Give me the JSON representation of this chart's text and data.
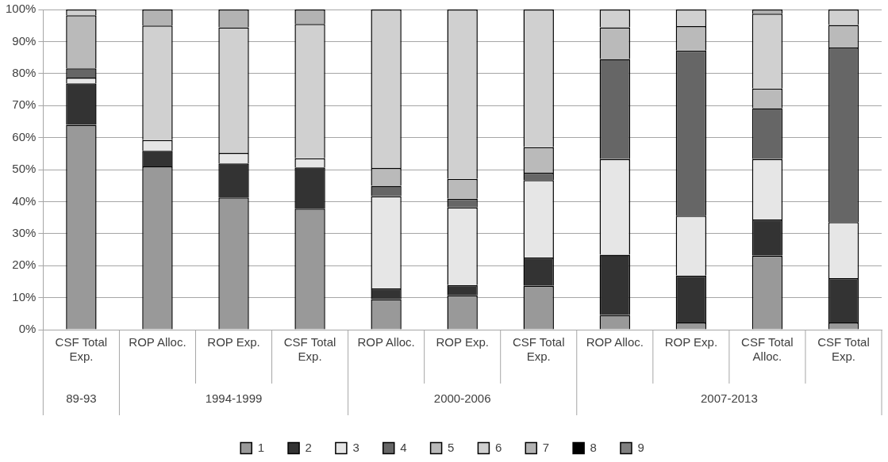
{
  "chart_data": {
    "type": "bar",
    "stacked": true,
    "categories": [
      "CSF Total Exp.",
      "ROP Alloc.",
      "ROP Exp.",
      "CSF Total Exp.",
      "ROP Alloc.",
      "ROP Exp.",
      "CSF Total Exp.",
      "ROP Alloc.",
      "ROP Exp.",
      "CSF Total Alloc.",
      "CSF Total Exp."
    ],
    "annotations": [
      "89-93",
      "1994-1999",
      "2000-2006",
      "2007-2013"
    ],
    "series": [
      {
        "name": "1",
        "color": "#999999",
        "values": [
          64.0,
          51.0,
          41.3,
          37.8,
          9.5,
          10.7,
          13.7,
          4.6,
          2.2,
          23.1,
          2.2
        ]
      },
      {
        "name": "2",
        "color": "#333333",
        "values": [
          12.9,
          4.9,
          10.6,
          12.9,
          3.4,
          3.2,
          8.8,
          18.8,
          14.7,
          11.3,
          13.9
        ]
      },
      {
        "name": "3",
        "color": "#e6e6e6",
        "values": [
          1.8,
          3.3,
          3.3,
          2.8,
          28.8,
          24.3,
          24.2,
          29.9,
          18.7,
          18.9,
          17.5
        ]
      },
      {
        "name": "4",
        "color": "#666666",
        "values": [
          2.9,
          null,
          null,
          null,
          3.2,
          2.7,
          2.3,
          31.2,
          51.6,
          15.9,
          54.5
        ]
      },
      {
        "name": "5",
        "color": "#bababa",
        "values": [
          16.6,
          null,
          null,
          null,
          5.6,
          6.2,
          8.0,
          9.9,
          7.6,
          6.1,
          7.1
        ]
      },
      {
        "name": "6",
        "color": "#d0d0d0",
        "values": [
          1.8,
          35.8,
          39.2,
          42.0,
          49.5,
          52.9,
          43.0,
          5.6,
          5.2,
          23.4,
          4.8
        ]
      },
      {
        "name": "7",
        "color": "#b3b3b3",
        "values": [
          null,
          5.0,
          5.6,
          4.5,
          null,
          null,
          null,
          null,
          null,
          1.3,
          null
        ]
      },
      {
        "name": "8",
        "color": "#000000",
        "values": [
          null,
          null,
          null,
          null,
          null,
          null,
          null,
          null,
          null,
          null,
          null
        ]
      },
      {
        "name": "9",
        "color": "#808080",
        "values": [
          null,
          null,
          null,
          null,
          null,
          null,
          null,
          null,
          null,
          null,
          null
        ]
      }
    ],
    "ylim": [
      0,
      100
    ],
    "yticks": [
      {
        "value": 0,
        "label": "0%"
      },
      {
        "value": 10,
        "label": "10%"
      },
      {
        "value": 20,
        "label": "20%"
      },
      {
        "value": 30,
        "label": "30%"
      },
      {
        "value": 40,
        "label": "40%"
      },
      {
        "value": 50,
        "label": "50%"
      },
      {
        "value": 60,
        "label": "60%"
      },
      {
        "value": 70,
        "label": "70%"
      },
      {
        "value": 80,
        "label": "80%"
      },
      {
        "value": 90,
        "label": "90%"
      },
      {
        "value": 100,
        "label": "100%"
      }
    ],
    "grid": "y",
    "legend": "bottom"
  }
}
